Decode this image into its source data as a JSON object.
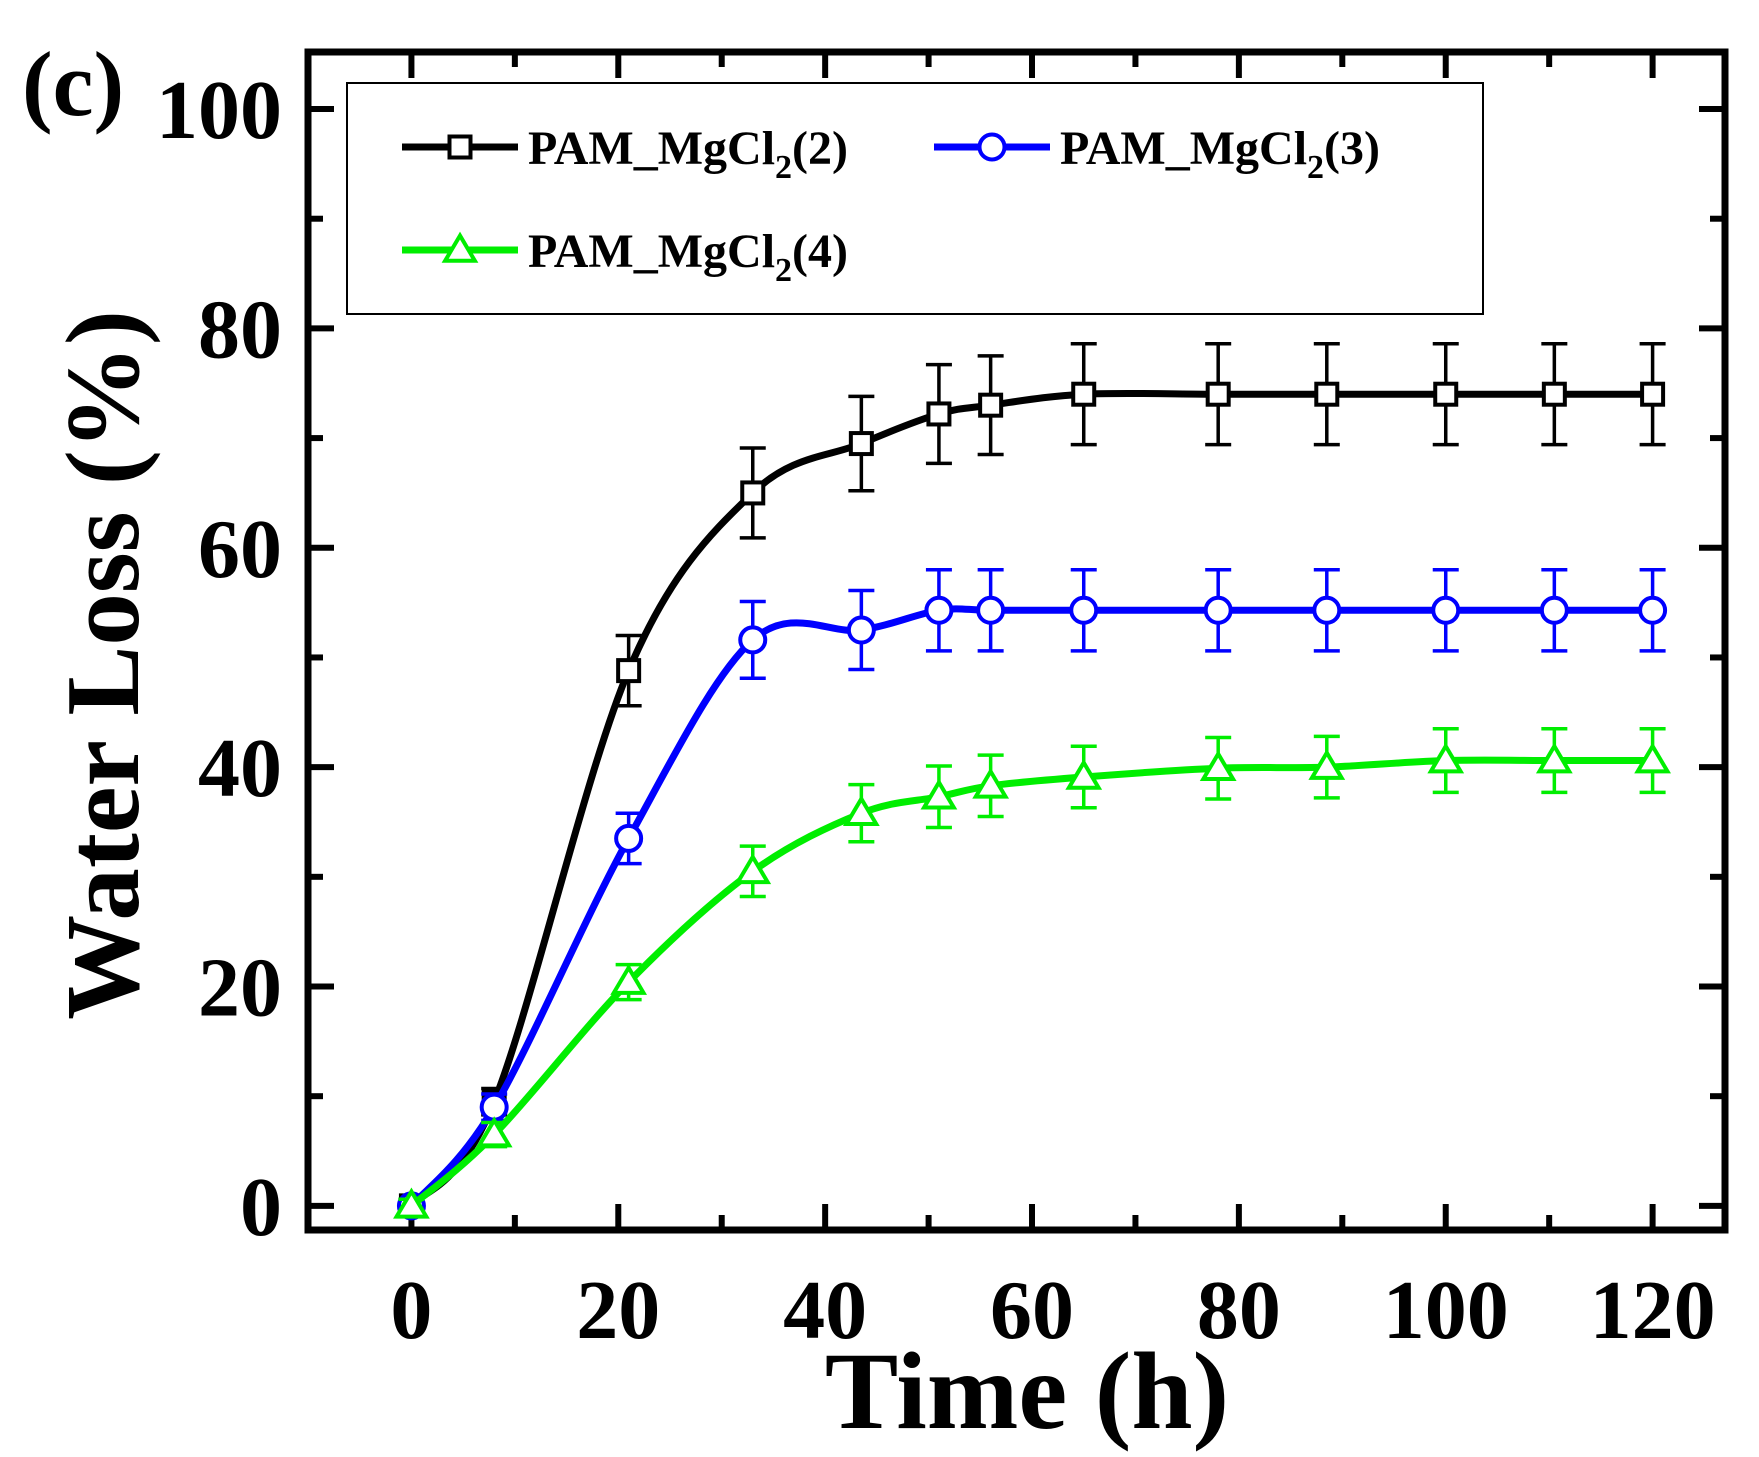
{
  "chart_data": {
    "type": "line",
    "panel_label": "(c)",
    "title": "",
    "xlabel": "Time (h)",
    "ylabel": "Water Loss (%)",
    "xlim": [
      -10,
      127
    ],
    "ylim": [
      -2.2,
      105.2
    ],
    "xticks": [
      0,
      20,
      40,
      60,
      80,
      100,
      120
    ],
    "yticks": [
      0,
      20,
      40,
      60,
      80,
      100
    ],
    "grid": false,
    "legend_position": "top-left",
    "error_bars": true,
    "series": [
      {
        "name": {
          "base": "PAM_MgCl",
          "sub": "2",
          "suffix": "(2)"
        },
        "color": "#000000",
        "marker": "square",
        "x": [
          0,
          8,
          21,
          33,
          43.5,
          51,
          56,
          65,
          78,
          88.5,
          100,
          110.5,
          120
        ],
        "y": [
          0,
          9.5,
          48.8,
          65,
          69.5,
          72.2,
          73,
          74,
          74,
          74,
          74,
          74,
          74
        ],
        "error": [
          0.6,
          1.2,
          3.2,
          4.1,
          4.3,
          4.5,
          4.5,
          4.6,
          4.6,
          4.6,
          4.6,
          4.6,
          4.6
        ]
      },
      {
        "name": {
          "base": "PAM_MgCl",
          "sub": "2",
          "suffix": "(3)"
        },
        "color": "#0000ff",
        "marker": "circle",
        "x": [
          0,
          8,
          21,
          33,
          43.5,
          51,
          56,
          65,
          78,
          88.5,
          100,
          110.5,
          120
        ],
        "y": [
          0,
          9,
          33.5,
          51.6,
          52.5,
          54.3,
          54.3,
          54.3,
          54.3,
          54.3,
          54.3,
          54.3,
          54.3
        ],
        "error": [
          0.6,
          1.2,
          2.3,
          3.5,
          3.6,
          3.7,
          3.7,
          3.7,
          3.7,
          3.7,
          3.7,
          3.7,
          3.7
        ]
      },
      {
        "name": {
          "base": "PAM_MgCl",
          "sub": "2",
          "suffix": "(4)"
        },
        "color": "#00ee00",
        "marker": "triangle",
        "x": [
          0,
          8,
          21,
          33,
          43.5,
          51,
          56,
          65,
          78,
          88.5,
          100,
          110.5,
          120
        ],
        "y": [
          0,
          6.5,
          20.4,
          30.5,
          35.8,
          37.3,
          38.3,
          39.1,
          39.9,
          40,
          40.6,
          40.6,
          40.6
        ],
        "error": [
          0.6,
          1.1,
          1.6,
          2.3,
          2.6,
          2.8,
          2.8,
          2.8,
          2.8,
          2.8,
          2.9,
          2.9,
          2.9
        ]
      }
    ]
  }
}
